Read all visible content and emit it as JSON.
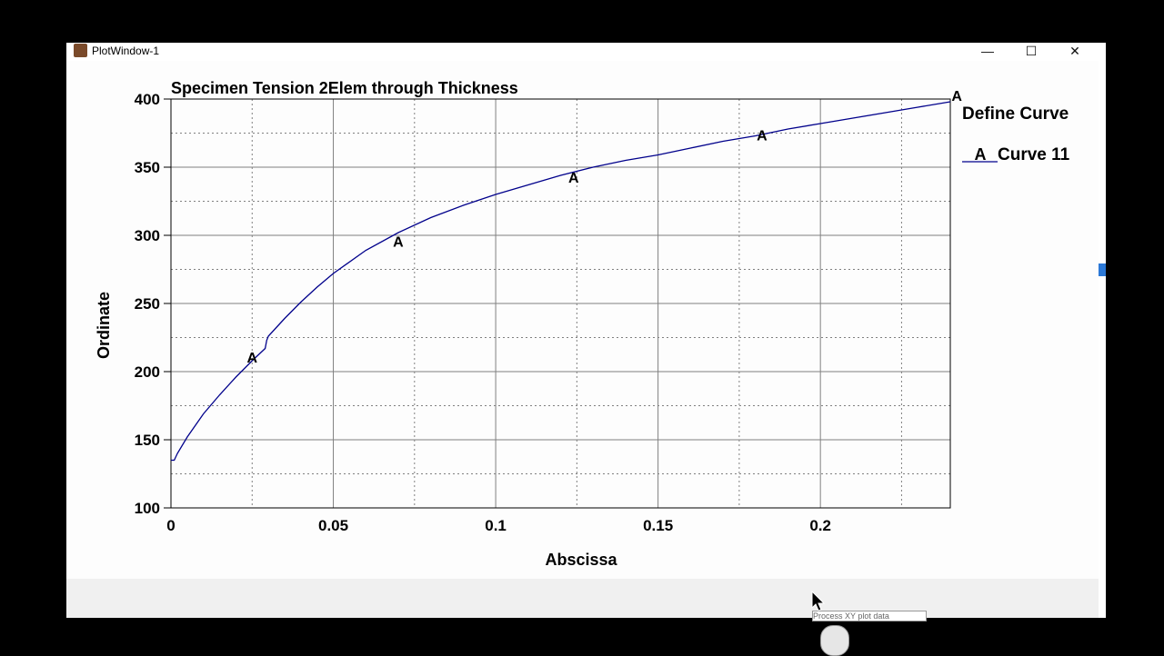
{
  "window": {
    "title": "PlotWindow-1",
    "controls": {
      "minimize": "—",
      "maximize": "☐",
      "close": "✕"
    }
  },
  "tooltip_text": "Process XY plot data",
  "colors": {
    "curve": "#00008b",
    "grid": "#808080",
    "background": "#fdfdfd"
  },
  "chart_data": {
    "type": "line",
    "title": "Specimen Tension 2Elem through Thickness",
    "xlabel": "Abscissa",
    "ylabel": "Ordinate",
    "xlim": [
      0,
      0.24
    ],
    "ylim": [
      100,
      400
    ],
    "xticks": [
      0,
      0.05,
      0.1,
      0.15,
      0.2
    ],
    "xtick_labels": [
      "0",
      "0.05",
      "0.1",
      "0.15",
      "0.2"
    ],
    "yticks": [
      100,
      150,
      200,
      250,
      300,
      350,
      400
    ],
    "ytick_labels": [
      "100",
      "150",
      "200",
      "250",
      "300",
      "350",
      "400"
    ],
    "grid": true,
    "legend": {
      "title": "Define Curve",
      "placement": "right",
      "entries": [
        {
          "marker": "A",
          "label": "Curve 11"
        }
      ]
    },
    "series": [
      {
        "name": "Curve 11",
        "marker": "A",
        "x": [
          0,
          0.001,
          0.002,
          0.005,
          0.01,
          0.015,
          0.02,
          0.025,
          0.029,
          0.0295,
          0.03,
          0.035,
          0.04,
          0.045,
          0.05,
          0.06,
          0.07,
          0.08,
          0.09,
          0.1,
          0.11,
          0.12,
          0.13,
          0.14,
          0.15,
          0.16,
          0.17,
          0.18,
          0.19,
          0.2,
          0.21,
          0.22,
          0.23,
          0.24
        ],
        "y": [
          135,
          135,
          140,
          152,
          169,
          183,
          196,
          208,
          217,
          223,
          226,
          239,
          251,
          262,
          272,
          289,
          302,
          313,
          322,
          330,
          337,
          344,
          350,
          355,
          359,
          364,
          369,
          373,
          378,
          382,
          386,
          390,
          394,
          398
        ],
        "marker_points": [
          {
            "x": 0.025,
            "y": 208
          },
          {
            "x": 0.07,
            "y": 293
          },
          {
            "x": 0.124,
            "y": 340
          },
          {
            "x": 0.182,
            "y": 371
          },
          {
            "x": 0.242,
            "y": 400
          }
        ]
      }
    ]
  }
}
